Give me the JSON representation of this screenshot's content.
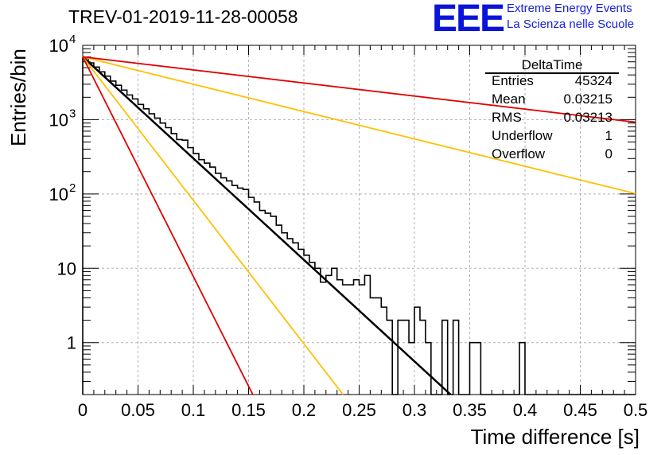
{
  "header": {
    "title": "TREV-01-2019-11-28-00058",
    "logo_text": "EEE",
    "logo_line1": "Extreme Energy Events",
    "logo_line2": "La Scienza nelle Scuole",
    "logo_color": "#0a14d8"
  },
  "stats": {
    "title": "DeltaTime",
    "rows": [
      {
        "key": "Entries",
        "value": "45324"
      },
      {
        "key": "Mean",
        "value": "0.03215"
      },
      {
        "key": "RMS",
        "value": "0.03213"
      },
      {
        "key": "Underflow",
        "value": "1"
      },
      {
        "key": "Overflow",
        "value": "0"
      }
    ]
  },
  "chart_data": {
    "type": "line",
    "xlabel": "Time difference [s]",
    "ylabel": "Entries/bin",
    "xlim": [
      0,
      0.5
    ],
    "ylim": [
      0.2,
      10000
    ],
    "yscale": "log",
    "grid": true,
    "x_ticks": [
      "0",
      "0.05",
      "0.1",
      "0.15",
      "0.2",
      "0.25",
      "0.3",
      "0.35",
      "0.4",
      "0.45",
      "0.5"
    ],
    "y_ticks": [
      {
        "value": 1,
        "label": "1"
      },
      {
        "value": 10,
        "label": "10"
      },
      {
        "value": 100,
        "label": "10",
        "exp": "2"
      },
      {
        "value": 1000,
        "label": "10",
        "exp": "3"
      },
      {
        "value": 10000,
        "label": "10",
        "exp": "4"
      }
    ],
    "histogram": {
      "bin_width": 0.005,
      "color": "#000000",
      "counts": [
        6700,
        5800,
        5100,
        4400,
        3850,
        3300,
        2900,
        2500,
        2150,
        1900,
        1600,
        1400,
        1200,
        1050,
        900,
        780,
        650,
        540,
        530,
        420,
        350,
        290,
        260,
        230,
        190,
        165,
        150,
        130,
        120,
        115,
        90,
        78,
        60,
        55,
        50,
        38,
        30,
        25,
        22,
        18,
        15,
        12,
        10,
        6.5,
        8,
        10,
        7,
        6,
        6,
        7,
        6,
        8,
        4,
        4,
        3,
        2,
        0,
        2,
        2,
        1,
        3,
        2,
        1,
        0,
        0,
        2,
        0,
        2,
        0,
        0,
        1,
        1,
        0,
        0,
        0,
        0,
        0,
        0,
        0,
        1,
        0,
        0,
        0,
        0,
        0,
        0,
        0,
        0,
        0,
        0,
        0,
        0,
        0,
        0,
        0,
        0,
        0,
        0,
        0,
        0
      ]
    },
    "series": [
      {
        "color": "#000000",
        "amplitude": 7000,
        "tau": 0.0318,
        "width": 2.5
      },
      {
        "color": "#ffc000",
        "amplitude": 7000,
        "tau": 0.0225,
        "width": 1.8
      },
      {
        "color": "#ffc000",
        "amplitude": 7000,
        "tau": 0.118,
        "width": 1.8
      },
      {
        "color": "#e00000",
        "amplitude": 7000,
        "tau": 0.0147,
        "width": 1.8
      },
      {
        "color": "#e00000",
        "amplitude": 7000,
        "tau": 0.247,
        "width": 1.8
      }
    ]
  }
}
